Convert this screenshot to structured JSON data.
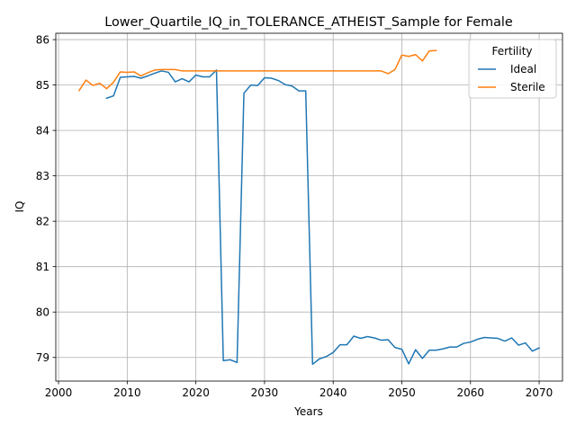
{
  "chart_data": {
    "type": "line",
    "title": "Lower_Quartile_IQ_in_TOLERANCE_ATHEIST_Sample for Female",
    "xlabel": "Years",
    "ylabel": "IQ",
    "xlim": [
      1999.6,
      2073.4
    ],
    "ylim": [
      78.48,
      86.14
    ],
    "xticks": [
      2000,
      2010,
      2020,
      2030,
      2040,
      2050,
      2060,
      2070
    ],
    "yticks": [
      79,
      80,
      81,
      82,
      83,
      84,
      85,
      86
    ],
    "grid": true,
    "legend": {
      "title": "Fertility",
      "placement": "top-right"
    },
    "series": [
      {
        "name": "Ideal",
        "color": "#1f77b4",
        "x": [
          2007,
          2008,
          2009,
          2010,
          2011,
          2012,
          2013,
          2014,
          2015,
          2016,
          2017,
          2018,
          2019,
          2020,
          2021,
          2022,
          2023,
          2024,
          2025,
          2026,
          2027,
          2028,
          2029,
          2030,
          2031,
          2032,
          2033,
          2034,
          2035,
          2036,
          2037,
          2038,
          2039,
          2040,
          2041,
          2042,
          2043,
          2044,
          2045,
          2046,
          2047,
          2048,
          2049,
          2050,
          2051,
          2052,
          2053,
          2054,
          2055,
          2056,
          2057,
          2058,
          2059,
          2060,
          2061,
          2062,
          2063,
          2064,
          2065,
          2066,
          2067,
          2068,
          2069,
          2070
        ],
        "y": [
          84.71,
          84.76,
          85.17,
          85.18,
          85.19,
          85.15,
          85.2,
          85.26,
          85.31,
          85.28,
          85.07,
          85.14,
          85.07,
          85.22,
          85.18,
          85.18,
          85.33,
          78.93,
          78.95,
          78.89,
          84.82,
          85.0,
          84.99,
          85.16,
          85.15,
          85.1,
          85.01,
          84.98,
          84.87,
          84.87,
          78.85,
          78.97,
          79.02,
          79.11,
          79.28,
          79.28,
          79.47,
          79.42,
          79.46,
          79.43,
          79.38,
          79.39,
          79.22,
          79.18,
          78.86,
          79.17,
          78.98,
          79.16,
          79.16,
          79.19,
          79.23,
          79.23,
          79.31,
          79.34,
          79.4,
          79.44,
          79.43,
          79.42,
          79.36,
          79.43,
          79.27,
          79.32,
          79.14,
          79.21
        ]
      },
      {
        "name": "Sterile",
        "color": "#ff7f0e",
        "x": [
          2003,
          2004,
          2005,
          2006,
          2007,
          2008,
          2009,
          2010,
          2011,
          2012,
          2013,
          2014,
          2015,
          2016,
          2017,
          2018,
          2019,
          2020,
          2021,
          2022,
          2023,
          2024,
          2025,
          2026,
          2027,
          2028,
          2029,
          2030,
          2031,
          2032,
          2033,
          2034,
          2035,
          2036,
          2037,
          2038,
          2039,
          2040,
          2041,
          2042,
          2043,
          2044,
          2045,
          2046,
          2047,
          2048,
          2049,
          2050,
          2051,
          2052,
          2053,
          2054,
          2055
        ],
        "y": [
          84.88,
          85.11,
          84.99,
          85.04,
          84.92,
          85.06,
          85.29,
          85.28,
          85.29,
          85.2,
          85.27,
          85.33,
          85.34,
          85.34,
          85.34,
          85.31,
          85.31,
          85.31,
          85.31,
          85.31,
          85.31,
          85.31,
          85.31,
          85.31,
          85.31,
          85.31,
          85.31,
          85.31,
          85.31,
          85.31,
          85.31,
          85.31,
          85.31,
          85.31,
          85.31,
          85.31,
          85.31,
          85.31,
          85.31,
          85.31,
          85.31,
          85.31,
          85.31,
          85.31,
          85.31,
          85.25,
          85.34,
          85.66,
          85.63,
          85.67,
          85.53,
          85.75,
          85.76
        ]
      }
    ]
  }
}
